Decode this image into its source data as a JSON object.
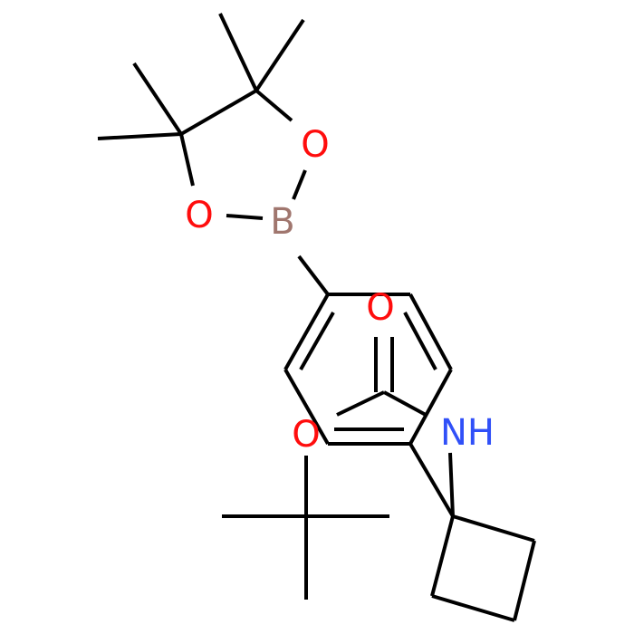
{
  "atoms": {
    "o1": "O",
    "o2": "O",
    "b": "B",
    "o3": "O",
    "o4": "O",
    "nh": "NH"
  }
}
